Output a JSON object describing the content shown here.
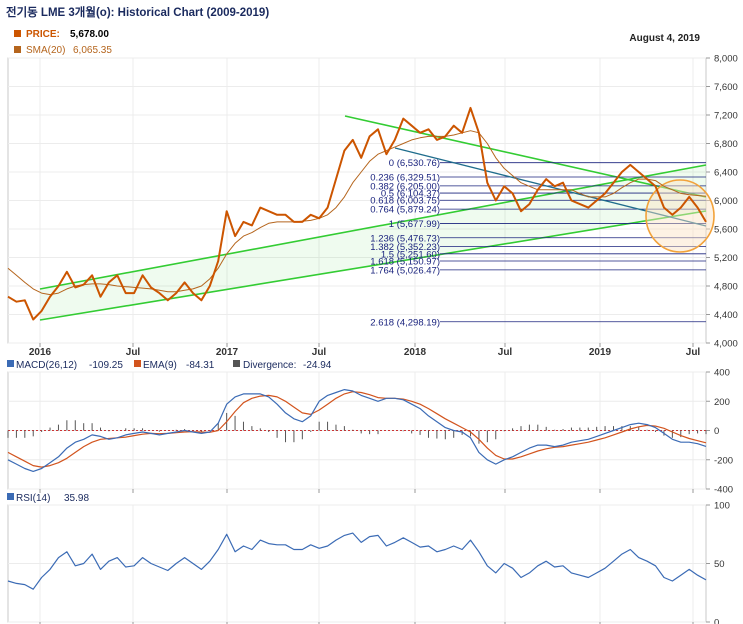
{
  "chart_title": "전기동 LME 3개월(o): Historical Chart (2009-2019)",
  "date_label": "August 4, 2019",
  "colors": {
    "price": "#cc5500",
    "sma": "#b5651d",
    "macd": "#3b6bb5",
    "ema": "#d2541e",
    "divergence": "#555555",
    "rsi": "#3b6bb5",
    "channel": "#33cc33",
    "fib": "#1a237e",
    "circle": "#f2a23a"
  },
  "legend": {
    "price_label": "PRICE:",
    "price_value": "5,678.00",
    "sma_label": "SMA(20)",
    "sma_value": "6,065.35",
    "macd_label": "MACD(26,12)",
    "macd_value": "-109.25",
    "ema_label": "EMA(9)",
    "ema_value": "-84.31",
    "div_label": "Divergence:",
    "div_value": "-24.94",
    "rsi_label": "RSI(14)",
    "rsi_value": "35.98"
  },
  "chart_data": [
    {
      "type": "line",
      "title": "전기동 LME 3개월(o): Historical Chart (2009-2019)",
      "x_ticks": [
        "2016",
        "Jul",
        "2017",
        "Jul",
        "2018",
        "Jul",
        "2019",
        "Jul"
      ],
      "y_ticks": [
        "4,000",
        "4,400",
        "4,800",
        "5,200",
        "5,600",
        "6,000",
        "6,400",
        "6,800",
        "7,200",
        "7,600",
        "8,000"
      ],
      "ylim": [
        4000,
        8000
      ],
      "series": [
        {
          "name": "PRICE",
          "values": [
            4650,
            4580,
            4600,
            4330,
            4450,
            4650,
            4800,
            5000,
            4780,
            4820,
            4950,
            4650,
            4850,
            4950,
            4700,
            4700,
            4950,
            4780,
            4700,
            4600,
            4700,
            4850,
            4700,
            4600,
            4800,
            5150,
            5850,
            5500,
            5700,
            5650,
            5900,
            5850,
            5800,
            5800,
            5700,
            5700,
            5800,
            5750,
            5900,
            6300,
            6700,
            6850,
            6600,
            6900,
            7000,
            6650,
            6850,
            7150,
            7050,
            6950,
            7000,
            6850,
            6900,
            7050,
            6950,
            7300,
            6950,
            6250,
            6000,
            6200,
            6100,
            5850,
            5950,
            6150,
            6300,
            6200,
            6250,
            6000,
            5950,
            5900,
            6000,
            6100,
            6250,
            6400,
            6500,
            6400,
            6300,
            6200,
            5900,
            5800,
            5900,
            6050,
            5900,
            5700
          ]
        },
        {
          "name": "SMA(20)",
          "values": [
            5050,
            4950,
            4850,
            4760,
            4700,
            4680,
            4700,
            4760,
            4800,
            4820,
            4830,
            4830,
            4820,
            4800,
            4790,
            4780,
            4770,
            4760,
            4740,
            4720,
            4720,
            4740,
            4760,
            4800,
            4900,
            5050,
            5250,
            5400,
            5500,
            5550,
            5620,
            5680,
            5700,
            5700,
            5700,
            5710,
            5720,
            5750,
            5800,
            5900,
            6050,
            6250,
            6400,
            6550,
            6650,
            6700,
            6750,
            6800,
            6850,
            6880,
            6900,
            6900,
            6900,
            6920,
            6950,
            6980,
            6950,
            6800,
            6600,
            6450,
            6350,
            6250,
            6200,
            6150,
            6150,
            6150,
            6150,
            6150,
            6100,
            6050,
            6050,
            6050,
            6100,
            6180,
            6250,
            6300,
            6300,
            6280,
            6200,
            6150,
            6100,
            6080,
            6070,
            6060
          ]
        }
      ],
      "fibonacci": [
        {
          "label": "0 (6,530.76)",
          "value": 6530.76
        },
        {
          "label": "0.236 (6,329.51)",
          "value": 6329.51
        },
        {
          "label": "0.382 (6,205.00)",
          "value": 6205.0
        },
        {
          "label": "0.5 (6,104.37)",
          "value": 6104.37
        },
        {
          "label": "0.618 (6,003.75)",
          "value": 6003.75
        },
        {
          "label": "0.764 (5,879.24)",
          "value": 5879.24
        },
        {
          "label": "1 (5,677.99)",
          "value": 5677.99
        },
        {
          "label": "1.236 (5,476.73)",
          "value": 5476.73
        },
        {
          "label": "1.382 (5,352.23)",
          "value": 5352.23
        },
        {
          "label": "1.5 (5,251.60)",
          "value": 5251.6
        },
        {
          "label": "1.618 (5,150.97)",
          "value": 5150.97
        },
        {
          "label": "1.764 (5,026.47)",
          "value": 5026.47
        },
        {
          "label": "2.618 (4,298.19)",
          "value": 4298.19
        }
      ]
    },
    {
      "type": "line",
      "y_ticks": [
        "400",
        "200",
        "0",
        "-200",
        "-400"
      ],
      "ylim": [
        -400,
        400
      ],
      "series": [
        {
          "name": "MACD(26,12)",
          "values": [
            -200,
            -230,
            -260,
            -280,
            -260,
            -220,
            -180,
            -120,
            -80,
            -60,
            -30,
            -40,
            -60,
            -50,
            -30,
            -20,
            -10,
            -20,
            -30,
            -20,
            -10,
            0,
            -10,
            -20,
            -10,
            50,
            180,
            230,
            250,
            250,
            250,
            230,
            180,
            120,
            80,
            60,
            100,
            200,
            240,
            260,
            280,
            270,
            240,
            220,
            200,
            220,
            220,
            210,
            180,
            150,
            100,
            60,
            20,
            0,
            -10,
            -50,
            -150,
            -200,
            -230,
            -200,
            -180,
            -150,
            -120,
            -100,
            -100,
            -110,
            -100,
            -80,
            -70,
            -60,
            -40,
            -20,
            0,
            20,
            40,
            50,
            40,
            20,
            -20,
            -60,
            -80,
            -80,
            -90,
            -109
          ]
        },
        {
          "name": "EMA(9)",
          "values": [
            -150,
            -180,
            -210,
            -240,
            -250,
            -240,
            -220,
            -190,
            -150,
            -110,
            -80,
            -60,
            -55,
            -50,
            -45,
            -35,
            -25,
            -20,
            -22,
            -20,
            -15,
            -10,
            -8,
            -10,
            -12,
            0,
            60,
            130,
            190,
            220,
            235,
            240,
            230,
            200,
            160,
            120,
            110,
            140,
            180,
            220,
            250,
            265,
            260,
            245,
            225,
            220,
            220,
            215,
            200,
            180,
            150,
            115,
            80,
            50,
            20,
            -10,
            -60,
            -120,
            -170,
            -195,
            -195,
            -180,
            -160,
            -140,
            -125,
            -115,
            -110,
            -100,
            -90,
            -80,
            -65,
            -50,
            -30,
            -10,
            10,
            25,
            35,
            30,
            15,
            -10,
            -35,
            -55,
            -70,
            -84
          ]
        },
        {
          "name": "Divergence",
          "values": [
            -50,
            -50,
            -50,
            -40,
            -10,
            20,
            40,
            70,
            70,
            50,
            50,
            20,
            -5,
            0,
            15,
            15,
            15,
            0,
            -8,
            0,
            5,
            10,
            -2,
            -10,
            2,
            50,
            120,
            100,
            60,
            30,
            15,
            -10,
            -50,
            -80,
            -80,
            -60,
            -10,
            60,
            60,
            40,
            30,
            5,
            -20,
            -25,
            -25,
            0,
            0,
            -5,
            -20,
            -30,
            -50,
            -55,
            -60,
            -50,
            -30,
            -40,
            -90,
            -80,
            -60,
            -5,
            15,
            30,
            40,
            40,
            25,
            5,
            10,
            20,
            20,
            20,
            25,
            30,
            30,
            30,
            30,
            25,
            5,
            -10,
            -35,
            -50,
            -45,
            -25,
            -20,
            -25
          ]
        }
      ]
    },
    {
      "type": "line",
      "y_ticks": [
        "100",
        "50",
        "0"
      ],
      "ylim": [
        0,
        100
      ],
      "series": [
        {
          "name": "RSI(14)",
          "values": [
            35,
            33,
            32,
            28,
            38,
            45,
            55,
            60,
            48,
            50,
            58,
            45,
            52,
            55,
            47,
            48,
            55,
            50,
            47,
            44,
            50,
            55,
            50,
            45,
            52,
            62,
            75,
            60,
            65,
            62,
            70,
            67,
            66,
            66,
            62,
            62,
            66,
            63,
            65,
            70,
            74,
            76,
            68,
            73,
            74,
            65,
            68,
            72,
            68,
            64,
            65,
            60,
            62,
            65,
            62,
            70,
            60,
            48,
            42,
            50,
            46,
            38,
            42,
            48,
            52,
            47,
            48,
            42,
            40,
            38,
            42,
            46,
            52,
            58,
            62,
            55,
            52,
            48,
            38,
            35,
            40,
            45,
            40,
            36
          ]
        }
      ]
    }
  ]
}
